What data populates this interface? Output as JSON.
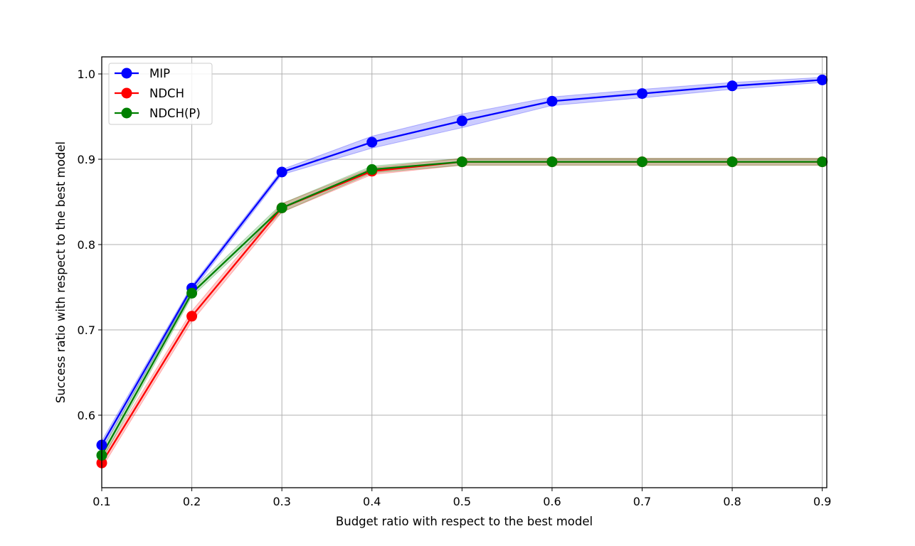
{
  "chart_data": {
    "type": "line",
    "title": "",
    "xlabel": "Budget ratio with respect to the best model",
    "ylabel": "Success ratio with respect to the best model",
    "xlim": [
      0.1,
      0.905
    ],
    "ylim": [
      0.515,
      1.02
    ],
    "grid": true,
    "legend_position": "top-left",
    "x": [
      0.1,
      0.2,
      0.3,
      0.4,
      0.5,
      0.6,
      0.7,
      0.8,
      0.9
    ],
    "x_ticks": [
      "0.1",
      "0.2",
      "0.3",
      "0.4",
      "0.5",
      "0.6",
      "0.7",
      "0.8",
      "0.9"
    ],
    "x_tick_values": [
      0.1,
      0.2,
      0.3,
      0.4,
      0.5,
      0.6,
      0.7,
      0.8,
      0.9
    ],
    "y_ticks": [
      "0.6",
      "0.7",
      "0.8",
      "0.9",
      "1.0"
    ],
    "y_tick_values": [
      0.6,
      0.7,
      0.8,
      0.9,
      1.0
    ],
    "series": [
      {
        "name": "MIP",
        "color": "#0000ff",
        "values": [
          0.565,
          0.749,
          0.885,
          0.92,
          0.945,
          0.968,
          0.977,
          0.986,
          0.993
        ],
        "band_low": [
          0.56,
          0.745,
          0.882,
          0.913,
          0.937,
          0.963,
          0.972,
          0.982,
          0.99
        ],
        "band_high": [
          0.57,
          0.752,
          0.888,
          0.927,
          0.953,
          0.973,
          0.982,
          0.99,
          0.996
        ]
      },
      {
        "name": "NDCH",
        "color": "#ff0000",
        "values": [
          0.544,
          0.716,
          0.843,
          0.886,
          0.897,
          0.897,
          0.897,
          0.897,
          0.897
        ],
        "band_low": [
          0.538,
          0.71,
          0.838,
          0.882,
          0.893,
          0.893,
          0.893,
          0.893,
          0.893
        ],
        "band_high": [
          0.55,
          0.722,
          0.848,
          0.89,
          0.901,
          0.901,
          0.901,
          0.901,
          0.901
        ]
      },
      {
        "name": "NDCH(P)",
        "color": "#008000",
        "values": [
          0.553,
          0.743,
          0.843,
          0.888,
          0.897,
          0.897,
          0.897,
          0.897,
          0.897
        ],
        "band_low": [
          0.547,
          0.739,
          0.838,
          0.884,
          0.893,
          0.893,
          0.893,
          0.893,
          0.893
        ],
        "band_high": [
          0.559,
          0.747,
          0.848,
          0.892,
          0.901,
          0.901,
          0.901,
          0.901,
          0.901
        ]
      }
    ]
  }
}
